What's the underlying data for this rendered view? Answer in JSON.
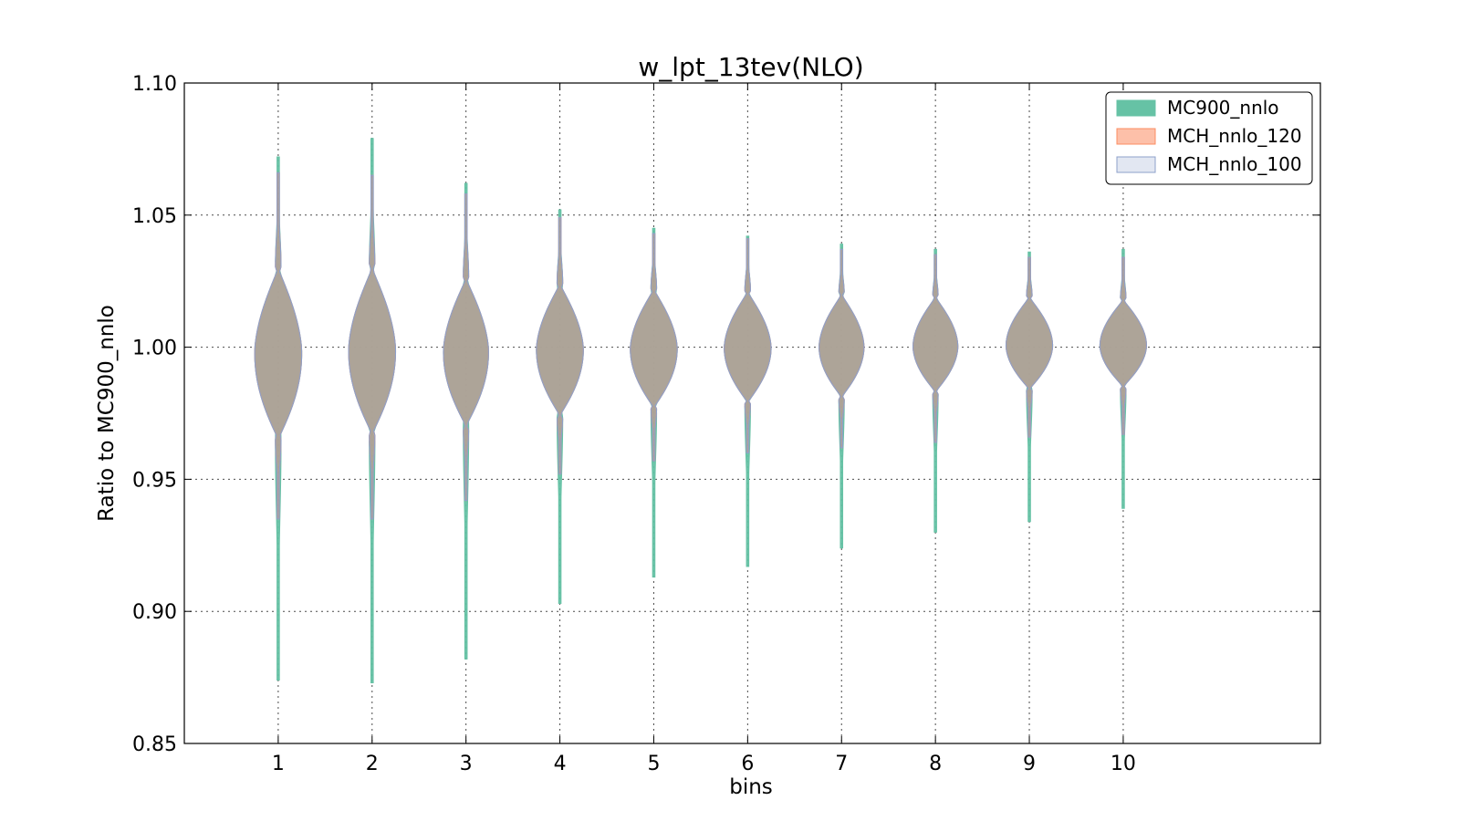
{
  "chart_data": {
    "type": "violin",
    "title": "w_lpt_13tev(NLO)",
    "xlabel": "bins",
    "ylabel": "Ratio to MC900_nnlo",
    "categories": [
      "1",
      "2",
      "3",
      "4",
      "5",
      "6",
      "7",
      "8",
      "9",
      "10"
    ],
    "x_range": [
      0.0,
      12.1
    ],
    "ylim": [
      0.85,
      1.1
    ],
    "yticks": [
      "0.85",
      "0.90",
      "0.95",
      "1.00",
      "1.05",
      "1.10"
    ],
    "grid": true,
    "legend_position": "top-right",
    "series": [
      {
        "name": "MC900_nnlo",
        "color": "#66c2a5",
        "max": [
          1.072,
          1.079,
          1.062,
          1.052,
          1.045,
          1.042,
          1.039,
          1.037,
          1.036,
          1.037
        ],
        "min": [
          0.874,
          0.873,
          0.882,
          0.903,
          0.913,
          0.917,
          0.924,
          0.93,
          0.934,
          0.939
        ]
      },
      {
        "name": "MCH_nnlo_120",
        "color": "#fc8d62",
        "max": [
          1.066,
          1.065,
          1.058,
          1.049,
          1.043,
          1.041,
          1.037,
          1.035,
          1.034,
          1.034
        ],
        "min": [
          0.935,
          0.935,
          0.942,
          0.952,
          0.957,
          0.96,
          0.962,
          0.964,
          0.966,
          0.967
        ]
      },
      {
        "name": "MCH_nnlo_100",
        "color": "#8da0cb",
        "max": [
          1.066,
          1.065,
          1.058,
          1.049,
          1.043,
          1.041,
          1.037,
          1.035,
          1.034,
          1.034
        ],
        "min": [
          0.935,
          0.935,
          0.942,
          0.952,
          0.957,
          0.96,
          0.962,
          0.964,
          0.966,
          0.967
        ]
      }
    ],
    "body_extent_upper": [
      1.03,
      1.03,
      1.026,
      1.024,
      1.022,
      1.021,
      1.02,
      1.019,
      1.019,
      1.018
    ],
    "body_extent_lower": [
      0.965,
      0.967,
      0.97,
      0.974,
      0.977,
      0.979,
      0.981,
      0.983,
      0.984,
      0.985
    ],
    "max_half_width": [
      0.25,
      0.25,
      0.24,
      0.25,
      0.25,
      0.25,
      0.24,
      0.24,
      0.25,
      0.25
    ]
  }
}
